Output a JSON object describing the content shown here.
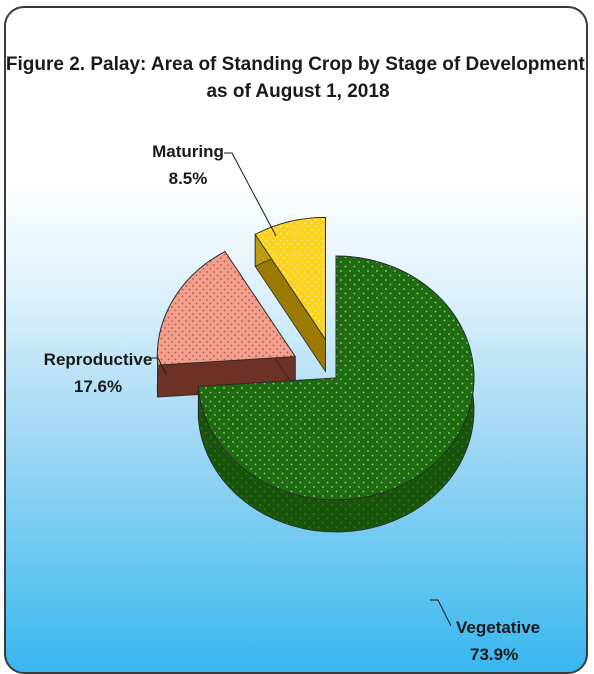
{
  "chart_data": {
    "type": "pie",
    "title": "Figure 2. Palay: Area of Standing Crop by Stage of Development,",
    "subtitle": "as of  August 1, 2018",
    "slices": [
      {
        "name": "Vegetative",
        "value": 73.9,
        "label": "73.9%",
        "color": "#1f6b0f"
      },
      {
        "name": "Reproductive",
        "value": 17.6,
        "label": "17.6%",
        "color": "#f2a08d"
      },
      {
        "name": "Maturing",
        "value": 8.5,
        "label": "8.5%",
        "color": "#ffd21a"
      }
    ],
    "style": "3d-exploded",
    "legend": "none"
  }
}
